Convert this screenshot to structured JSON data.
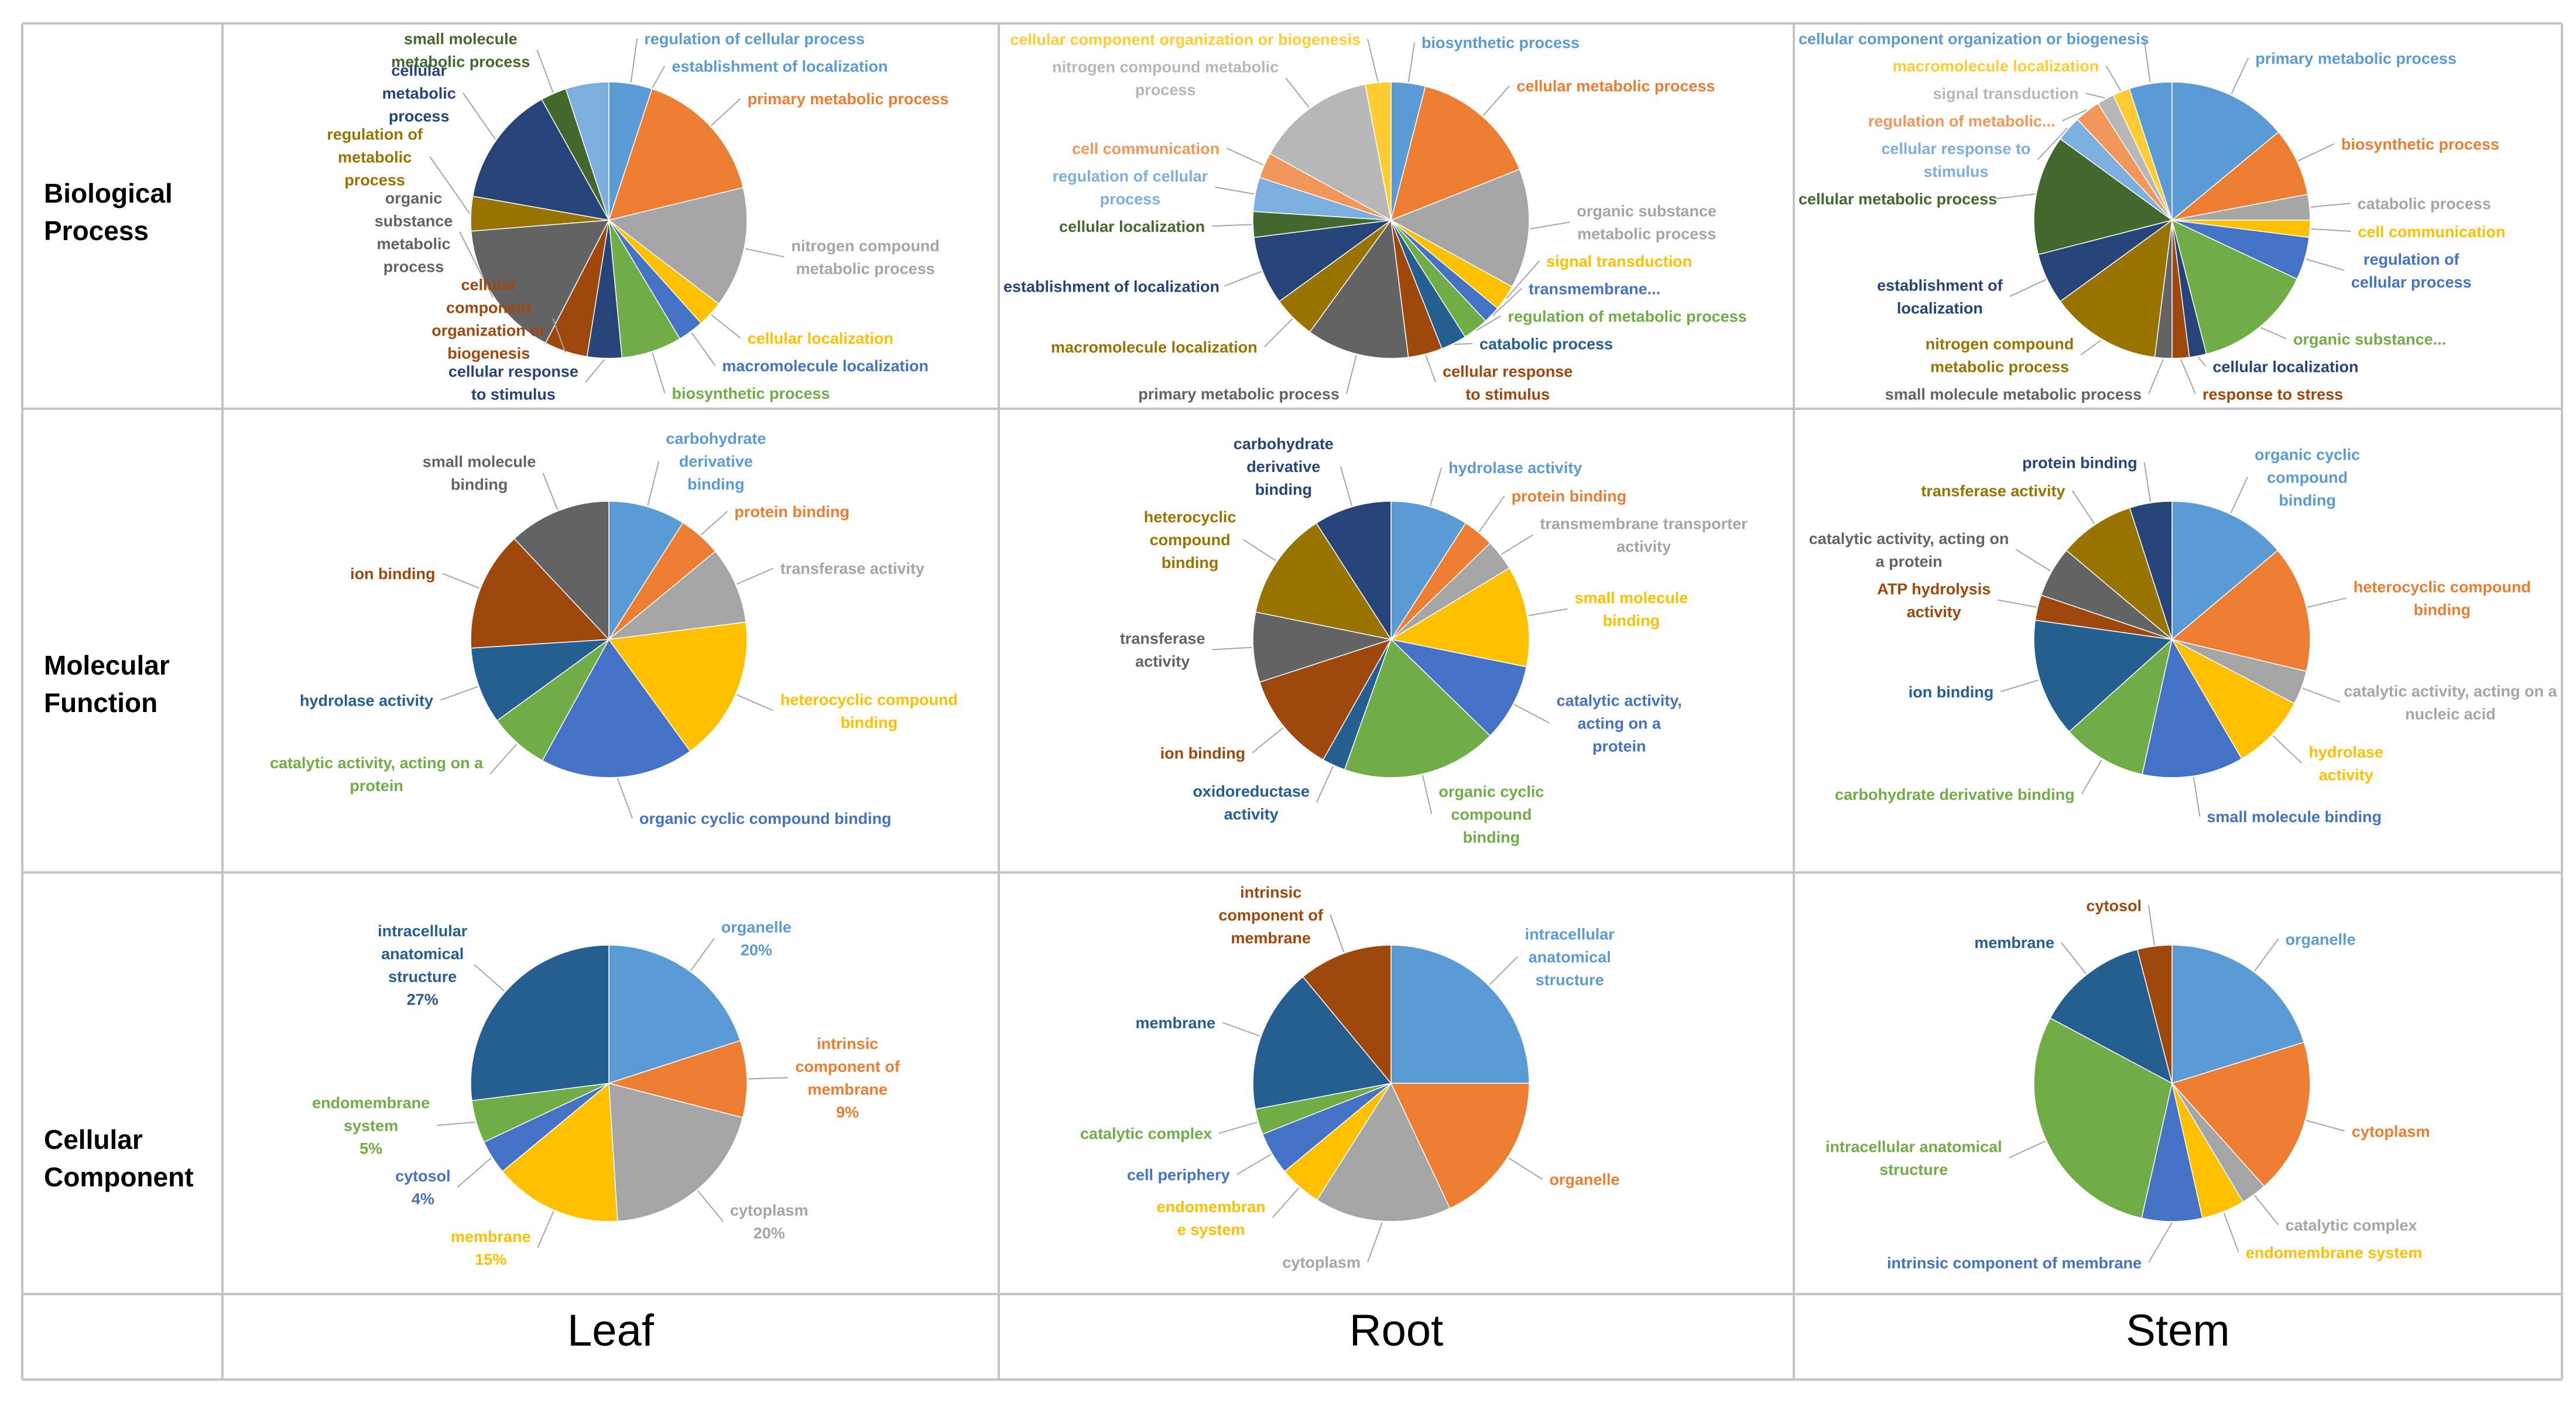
{
  "colors": {
    "blue": "#5B9BD5",
    "orange": "#ED7D31",
    "gray": "#A5A5A5",
    "gold": "#FFC000",
    "royal": "#4472C4",
    "green": "#70AD47",
    "navy": "#264478",
    "brown": "#9E480E",
    "dgray": "#636363",
    "olive": "#997300",
    "steel": "#255E91",
    "dgreen": "#43682B",
    "lblue": "#7CAFDD",
    "lorange": "#F1975A",
    "lgray": "#B7B7B7",
    "lgold": "#FFCD33"
  },
  "rows": [
    {
      "lines": [
        "Biological",
        "Process"
      ]
    },
    {
      "lines": [
        "Molecular",
        "Function"
      ]
    },
    {
      "lines": [
        "Cellular",
        "Component"
      ]
    }
  ],
  "columns": [
    "Leaf",
    "Root",
    "Stem"
  ],
  "chart_data": [
    {
      "type": "pie",
      "panel": "Leaf - Biological Process",
      "start_angle": 0,
      "slices": [
        {
          "value": 5,
          "color": "blue",
          "label": [
            "regulation of cellular process"
          ]
        },
        {
          "value": 0.0001,
          "color": "blue",
          "label": [
            "establishment of localization"
          ]
        },
        {
          "value": 16,
          "color": "orange",
          "label": [
            "primary metabolic process"
          ]
        },
        {
          "value": 14,
          "color": "gray",
          "label": [
            "nitrogen compound",
            "metabolic process"
          ]
        },
        {
          "value": 3,
          "color": "gold",
          "label": [
            "cellular localization"
          ]
        },
        {
          "value": 3,
          "color": "royal",
          "label": [
            "macromolecule localization"
          ]
        },
        {
          "value": 7,
          "color": "green",
          "label": [
            "biosynthetic process"
          ]
        },
        {
          "value": 4,
          "color": "navy",
          "label": [
            "cellular response",
            "to stimulus"
          ]
        },
        {
          "value": 5,
          "color": "brown",
          "label": [
            "cellular",
            "component",
            "organization or",
            "biogenesis"
          ]
        },
        {
          "value": 16,
          "color": "dgray",
          "label": [
            "organic",
            "substance",
            "metabolic",
            "process"
          ]
        },
        {
          "value": 4,
          "color": "olive",
          "label": [
            "regulation of",
            "metabolic",
            "process"
          ]
        },
        {
          "value": 14,
          "color": "navy",
          "label": [
            "cellular",
            "metabolic",
            "process"
          ]
        },
        {
          "value": 3,
          "color": "dgreen",
          "label": [
            "small molecule",
            "metabolic process"
          ]
        },
        {
          "value": 5,
          "color": "lblue",
          "label": []
        }
      ]
    },
    {
      "type": "pie",
      "panel": "Root - Biological Process",
      "start_angle": 0,
      "slices": [
        {
          "value": 4,
          "color": "blue",
          "label": [
            "biosynthetic process"
          ]
        },
        {
          "value": 15,
          "color": "orange",
          "label": [
            "cellular metabolic process"
          ]
        },
        {
          "value": 14,
          "color": "gray",
          "label": [
            "organic substance",
            "metabolic process"
          ]
        },
        {
          "value": 3,
          "color": "gold",
          "label": [
            "signal transduction"
          ]
        },
        {
          "value": 2,
          "color": "royal",
          "label": [
            "transmembrane..."
          ]
        },
        {
          "value": 3,
          "color": "green",
          "label": [
            "regulation of metabolic process"
          ]
        },
        {
          "value": 3,
          "color": "steel",
          "label": [
            "catabolic process"
          ]
        },
        {
          "value": 4,
          "color": "brown",
          "label": [
            "cellular response",
            "to stimulus"
          ]
        },
        {
          "value": 12,
          "color": "dgray",
          "label": [
            "primary metabolic process"
          ]
        },
        {
          "value": 5,
          "color": "olive",
          "label": [
            "macromolecule localization"
          ]
        },
        {
          "value": 8,
          "color": "navy",
          "label": [
            "establishment of localization"
          ]
        },
        {
          "value": 3,
          "color": "dgreen",
          "label": [
            "cellular localization"
          ]
        },
        {
          "value": 4,
          "color": "lblue",
          "label": [
            "regulation of cellular",
            "process"
          ]
        },
        {
          "value": 3,
          "color": "lorange",
          "label": [
            "cell communication"
          ]
        },
        {
          "value": 14,
          "color": "lgray",
          "label": [
            "nitrogen compound metabolic",
            "process"
          ]
        },
        {
          "value": 3,
          "color": "lgold",
          "label": [
            "cellular component organization or biogenesis"
          ]
        }
      ]
    },
    {
      "type": "pie",
      "panel": "Stem - Biological Process",
      "start_angle": 0,
      "slices": [
        {
          "value": 14,
          "color": "blue",
          "label": [
            "primary metabolic process"
          ]
        },
        {
          "value": 8,
          "color": "orange",
          "label": [
            "biosynthetic process"
          ]
        },
        {
          "value": 3,
          "color": "gray",
          "label": [
            "catabolic process"
          ]
        },
        {
          "value": 2,
          "color": "gold",
          "label": [
            "cell communication"
          ]
        },
        {
          "value": 5,
          "color": "royal",
          "label": [
            "regulation of",
            "cellular process"
          ]
        },
        {
          "value": 14,
          "color": "green",
          "label": [
            "organic substance..."
          ]
        },
        {
          "value": 2,
          "color": "navy",
          "label": [
            "cellular localization"
          ]
        },
        {
          "value": 2,
          "color": "brown",
          "label": [
            "response to stress"
          ]
        },
        {
          "value": 2,
          "color": "dgray",
          "label": [
            "small molecule metabolic process"
          ]
        },
        {
          "value": 13,
          "color": "olive",
          "label": [
            "nitrogen compound",
            "metabolic process"
          ]
        },
        {
          "value": 6,
          "color": "navy",
          "label": [
            "establishment of",
            "localization"
          ]
        },
        {
          "value": 14,
          "color": "dgreen",
          "label": [
            "cellular metabolic process"
          ]
        },
        {
          "value": 3,
          "color": "lblue",
          "label": [
            "cellular response to",
            "stimulus"
          ]
        },
        {
          "value": 3,
          "color": "lorange",
          "label": [
            "regulation of metabolic..."
          ]
        },
        {
          "value": 2,
          "color": "lgray",
          "label": [
            "signal transduction"
          ]
        },
        {
          "value": 2,
          "color": "lgold",
          "label": [
            "macromolecule localization"
          ]
        },
        {
          "value": 5,
          "color": "blue",
          "label": [
            "cellular component organization or biogenesis"
          ]
        }
      ]
    },
    {
      "type": "pie",
      "panel": "Leaf - Molecular Function",
      "start_angle": 0,
      "slices": [
        {
          "value": 9,
          "color": "blue",
          "label": [
            "carbohydrate",
            "derivative",
            "binding"
          ]
        },
        {
          "value": 5,
          "color": "orange",
          "label": [
            "protein binding"
          ]
        },
        {
          "value": 9,
          "color": "gray",
          "label": [
            "transferase activity"
          ]
        },
        {
          "value": 17,
          "color": "gold",
          "label": [
            "heterocyclic compound",
            "binding"
          ]
        },
        {
          "value": 18,
          "color": "royal",
          "label": [
            "organic cyclic compound binding"
          ]
        },
        {
          "value": 7,
          "color": "green",
          "label": [
            "catalytic activity, acting on a",
            "protein"
          ]
        },
        {
          "value": 9,
          "color": "steel",
          "label": [
            "hydrolase activity"
          ]
        },
        {
          "value": 14,
          "color": "brown",
          "label": [
            "ion binding"
          ]
        },
        {
          "value": 12,
          "color": "dgray",
          "label": [
            "small molecule",
            "binding"
          ]
        }
      ]
    },
    {
      "type": "pie",
      "panel": "Root - Molecular Function",
      "start_angle": 0,
      "slices": [
        {
          "value": 10,
          "color": "blue",
          "label": [
            "hydrolase activity"
          ]
        },
        {
          "value": 4,
          "color": "orange",
          "label": [
            "protein binding"
          ]
        },
        {
          "value": 4,
          "color": "gray",
          "label": [
            "transmembrane transporter",
            "activity"
          ]
        },
        {
          "value": 13,
          "color": "gold",
          "label": [
            "small molecule",
            "binding"
          ]
        },
        {
          "value": 10,
          "color": "royal",
          "label": [
            "catalytic activity,",
            "acting on a",
            "protein"
          ]
        },
        {
          "value": 20,
          "color": "green",
          "label": [
            "organic cyclic",
            "compound",
            "binding"
          ]
        },
        {
          "value": 3,
          "color": "steel",
          "label": [
            "oxidoreductase",
            "activity"
          ]
        },
        {
          "value": 13,
          "color": "brown",
          "label": [
            "ion binding"
          ]
        },
        {
          "value": 9,
          "color": "dgray",
          "label": [
            "transferase",
            "activity"
          ]
        },
        {
          "value": 14,
          "color": "olive",
          "label": [
            "heterocyclic",
            "compound",
            "binding"
          ]
        },
        {
          "value": 10,
          "color": "navy",
          "label": [
            "carbohydrate",
            "derivative",
            "binding"
          ]
        }
      ]
    },
    {
      "type": "pie",
      "panel": "Stem - Molecular Function",
      "start_angle": 0,
      "slices": [
        {
          "value": 14,
          "color": "blue",
          "label": [
            "organic cyclic",
            "compound",
            "binding"
          ]
        },
        {
          "value": 15,
          "color": "orange",
          "label": [
            "heterocyclic compound",
            "binding"
          ]
        },
        {
          "value": 4,
          "color": "gray",
          "label": [
            "catalytic activity, acting on a",
            "nucleic acid"
          ]
        },
        {
          "value": 9,
          "color": "gold",
          "label": [
            "hydrolase",
            "activity"
          ]
        },
        {
          "value": 12,
          "color": "royal",
          "label": [
            "small molecule binding"
          ]
        },
        {
          "value": 10,
          "color": "green",
          "label": [
            "carbohydrate derivative binding"
          ]
        },
        {
          "value": 14,
          "color": "steel",
          "label": [
            "ion binding"
          ]
        },
        {
          "value": 3,
          "color": "brown",
          "label": [
            "ATP hydrolysis",
            "activity"
          ]
        },
        {
          "value": 6,
          "color": "dgray",
          "label": [
            "catalytic activity, acting on",
            "a protein"
          ]
        },
        {
          "value": 9,
          "color": "olive",
          "label": [
            "transferase activity"
          ]
        },
        {
          "value": 5,
          "color": "navy",
          "label": [
            "protein binding"
          ]
        }
      ]
    },
    {
      "type": "pie",
      "panel": "Leaf - Cellular Component",
      "start_angle": 0,
      "slices": [
        {
          "value": 20,
          "color": "blue",
          "label": [
            "organelle",
            "20%"
          ]
        },
        {
          "value": 9,
          "color": "orange",
          "label": [
            "intrinsic",
            "component of",
            "membrane",
            "9%"
          ]
        },
        {
          "value": 20,
          "color": "gray",
          "label": [
            "cytoplasm",
            "20%"
          ]
        },
        {
          "value": 15,
          "color": "gold",
          "label": [
            "membrane",
            "15%"
          ]
        },
        {
          "value": 4,
          "color": "royal",
          "label": [
            "cytosol",
            "4%"
          ]
        },
        {
          "value": 5,
          "color": "green",
          "label": [
            "endomembrane",
            "system",
            "5%"
          ]
        },
        {
          "value": 27,
          "color": "steel",
          "label": [
            "intracellular",
            "anatomical",
            "structure",
            "27%"
          ]
        }
      ]
    },
    {
      "type": "pie",
      "panel": "Root - Cellular Component",
      "start_angle": 0,
      "slices": [
        {
          "value": 25,
          "color": "blue",
          "label": [
            "intracellular",
            "anatomical",
            "structure"
          ]
        },
        {
          "value": 18,
          "color": "orange",
          "label": [
            "organelle"
          ]
        },
        {
          "value": 16,
          "color": "gray",
          "label": [
            "cytoplasm"
          ]
        },
        {
          "value": 5,
          "color": "gold",
          "label": [
            "endomembran",
            "e system"
          ]
        },
        {
          "value": 5,
          "color": "royal",
          "label": [
            "cell periphery"
          ]
        },
        {
          "value": 3,
          "color": "green",
          "label": [
            "catalytic complex"
          ]
        },
        {
          "value": 17,
          "color": "steel",
          "label": [
            "membrane"
          ]
        },
        {
          "value": 11,
          "color": "brown",
          "label": [
            "intrinsic",
            "component of",
            "membrane"
          ]
        }
      ]
    },
    {
      "type": "pie",
      "panel": "Stem - Cellular Component",
      "start_angle": 0,
      "slices": [
        {
          "value": 20,
          "color": "blue",
          "label": [
            "organelle"
          ]
        },
        {
          "value": 18,
          "color": "orange",
          "label": [
            "cytoplasm"
          ]
        },
        {
          "value": 3,
          "color": "gray",
          "label": [
            "catalytic complex"
          ]
        },
        {
          "value": 5,
          "color": "gold",
          "label": [
            "endomembrane system"
          ]
        },
        {
          "value": 7,
          "color": "royal",
          "label": [
            "intrinsic component of membrane"
          ]
        },
        {
          "value": 29,
          "color": "green",
          "label": [
            "intracellular anatomical",
            "structure"
          ]
        },
        {
          "value": 13,
          "color": "steel",
          "label": [
            "membrane"
          ]
        },
        {
          "value": 4,
          "color": "brown",
          "label": [
            "cytosol"
          ]
        }
      ]
    }
  ]
}
